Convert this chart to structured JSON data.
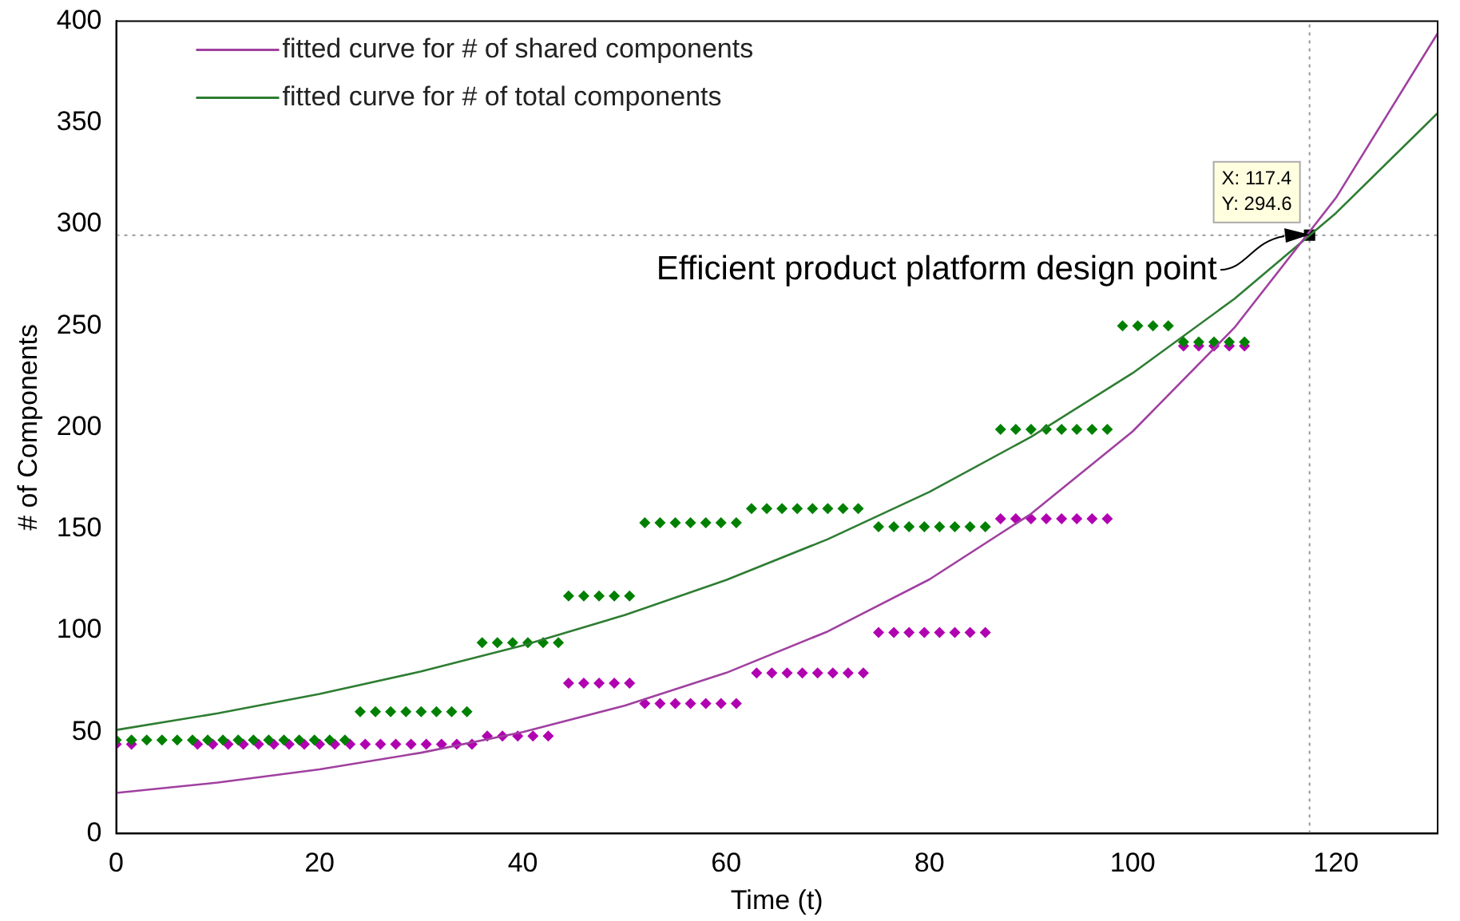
{
  "chart_data": {
    "type": "scatter",
    "xlabel": "Time (t)",
    "ylabel": "# of Components",
    "xlim": [
      0,
      130
    ],
    "xticks": [
      0,
      20,
      40,
      60,
      80,
      100,
      120
    ],
    "ylim": [
      0,
      400
    ],
    "yticks": [
      0,
      50,
      100,
      150,
      200,
      250,
      300,
      350,
      400
    ],
    "grid": false,
    "legend": "top left",
    "series": [
      {
        "name": "fitted curve for # of shared components",
        "type": "line",
        "marker": "none",
        "color": "#a040a0",
        "x": [
          0,
          10,
          20,
          30,
          40,
          50,
          60,
          70,
          80,
          90,
          100,
          110,
          120,
          130
        ],
        "values": [
          20,
          25.1,
          31.6,
          39.8,
          50,
          62.9,
          79.1,
          99.5,
          125.1,
          157.4,
          198,
          249,
          313,
          394
        ]
      },
      {
        "name": "fitted curve for # of total components",
        "type": "line",
        "marker": "none",
        "color": "#2e7d32",
        "x": [
          0,
          10,
          20,
          30,
          40,
          50,
          60,
          70,
          80,
          90,
          100,
          110,
          120,
          130
        ],
        "values": [
          51,
          59.2,
          68.7,
          79.8,
          92.6,
          107.5,
          124.8,
          144.9,
          168.2,
          195.3,
          226.7,
          263.2,
          305.5,
          354.7
        ]
      },
      {
        "marker": "diamond",
        "color": "#008000",
        "x": [
          0,
          1.5,
          3,
          4.5,
          6,
          7.5,
          9,
          10.5,
          12,
          13.5,
          15,
          16.5,
          18,
          19.5,
          21,
          22.5,
          24,
          25.5,
          27,
          28.5,
          30,
          31.5,
          33,
          34.5,
          36,
          37.5,
          39,
          40.5,
          42,
          43.5,
          44.5,
          46,
          47.5,
          49,
          50.5,
          52,
          53.5,
          55,
          56.5,
          58,
          59.5,
          61,
          62.5,
          64,
          65.5,
          67,
          68.5,
          70,
          71.5,
          73,
          75,
          76.5,
          78,
          79.5,
          81,
          82.5,
          84,
          85.5,
          87,
          88.5,
          90,
          91.5,
          93,
          94.5,
          96,
          97.5,
          99,
          100.5,
          102,
          103.5,
          105,
          106.5,
          108,
          109.5,
          111
        ],
        "values": [
          46,
          46,
          46,
          46,
          46,
          46,
          46,
          46,
          46,
          46,
          46,
          46,
          46,
          46,
          46,
          46,
          60,
          60,
          60,
          60,
          60,
          60,
          60,
          60,
          94,
          94,
          94,
          94,
          94,
          94,
          117,
          117,
          117,
          117,
          117,
          153,
          153,
          153,
          153,
          153,
          153,
          153,
          160,
          160,
          160,
          160,
          160,
          160,
          160,
          160,
          151,
          151,
          151,
          151,
          151,
          151,
          151,
          151,
          199,
          199,
          199,
          199,
          199,
          199,
          199,
          199,
          250,
          250,
          250,
          250,
          242,
          242,
          242,
          242,
          242
        ]
      },
      {
        "marker": "diamond",
        "color": "#b000b0",
        "x": [
          0,
          1.5,
          8,
          9.5,
          11,
          12.5,
          14,
          15.5,
          17,
          18.5,
          20,
          21.5,
          23,
          24.5,
          26,
          27.5,
          29,
          30.5,
          32,
          33.5,
          35,
          36.5,
          38,
          39.5,
          41,
          42.5,
          44.5,
          46,
          47.5,
          49,
          50.5,
          52,
          53.5,
          55,
          56.5,
          58,
          59.5,
          61,
          63,
          64.5,
          66,
          67.5,
          69,
          70.5,
          72,
          73.5,
          75,
          76.5,
          78,
          79.5,
          81,
          82.5,
          84,
          85.5,
          87,
          88.5,
          90,
          91.5,
          93,
          94.5,
          96,
          97.5,
          105,
          106.5,
          108,
          109.5,
          111
        ],
        "values": [
          44,
          44,
          44,
          44,
          44,
          44,
          44,
          44,
          44,
          44,
          44,
          44,
          44,
          44,
          44,
          44,
          44,
          44,
          44,
          44,
          44,
          48,
          48,
          48,
          48,
          48,
          74,
          74,
          74,
          74,
          74,
          64,
          64,
          64,
          64,
          64,
          64,
          64,
          79,
          79,
          79,
          79,
          79,
          79,
          79,
          79,
          99,
          99,
          99,
          99,
          99,
          99,
          99,
          99,
          155,
          155,
          155,
          155,
          155,
          155,
          155,
          155,
          240,
          240,
          240,
          240,
          240
        ]
      },
      {
        "marker": "square",
        "color": "#000000",
        "x": [
          117.4
        ],
        "values": [
          294.6
        ]
      }
    ],
    "ref_lines": [
      {
        "axis": "x",
        "value": 117.4,
        "color": "#999999",
        "line_style": "dotted"
      },
      {
        "axis": "y",
        "value": 294.6,
        "color": "#999999",
        "line_style": "dotted"
      }
    ],
    "annotations": [
      {
        "text": "Efficient product platform design point",
        "x": 117.4,
        "y": 294.6
      },
      "X: 117.4",
      "Y: 294.6"
    ]
  }
}
